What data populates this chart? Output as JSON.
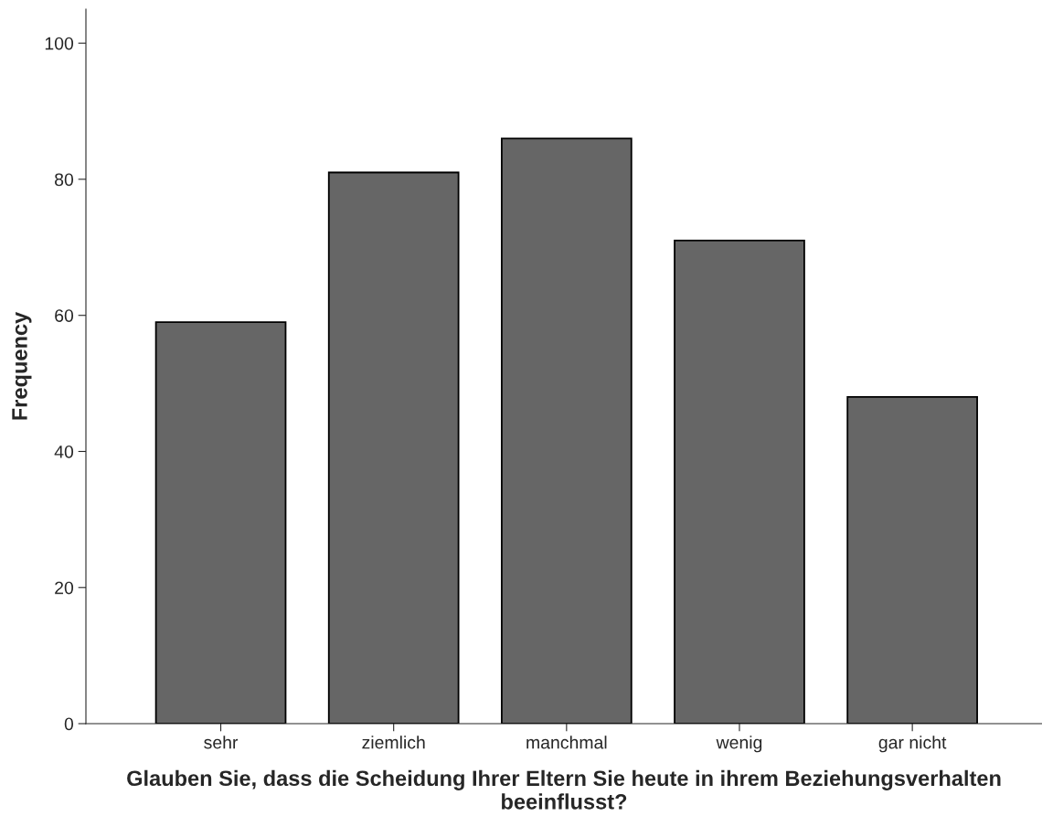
{
  "chart_data": {
    "type": "bar",
    "xlabel": "Glauben Sie, dass die Scheidung Ihrer Eltern Sie heute in ihrem Beziehungsverhalten beeinflusst?",
    "ylabel": "Frequency",
    "categories": [
      "sehr",
      "ziemlich",
      "manchmal",
      "wenig",
      "gar nicht"
    ],
    "values": [
      59,
      81,
      86,
      71,
      48
    ],
    "color": "#666666",
    "ylim": [
      0,
      105
    ],
    "yticks": [
      0,
      20,
      40,
      60,
      80,
      100
    ],
    "grid": false
  }
}
